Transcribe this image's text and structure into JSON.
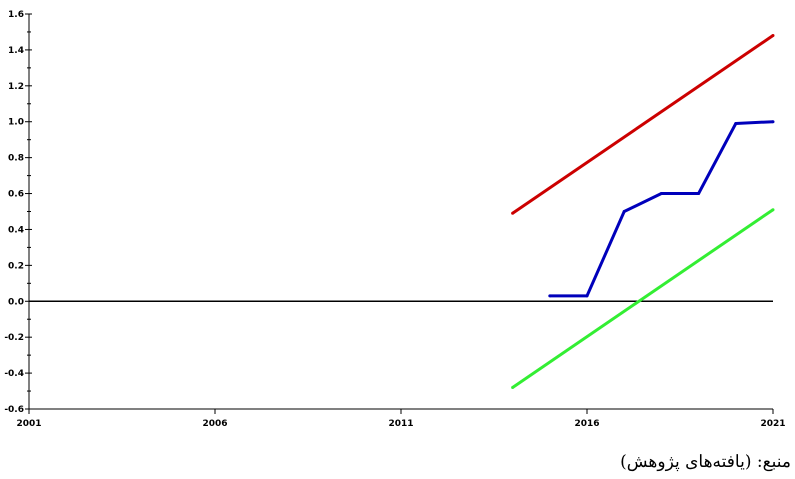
{
  "chart_data": {
    "type": "line",
    "title": "",
    "xlabel": "",
    "ylabel": "",
    "xlim": [
      2001,
      2021
    ],
    "ylim": [
      -0.6,
      1.6
    ],
    "x_ticks": [
      2001,
      2006,
      2011,
      2016,
      2021
    ],
    "x_tick_labels": [
      "2001",
      "2006",
      "2011",
      "2016",
      "2021"
    ],
    "y_ticks": [
      -0.6,
      -0.4,
      -0.2,
      0.0,
      0.2,
      0.4,
      0.6,
      0.8,
      1.0,
      1.2,
      1.4,
      1.6
    ],
    "y_tick_labels": [
      "-0.6",
      "-0.4",
      "-0.2",
      "0.0",
      "0.2",
      "0.4",
      "0.6",
      "0.8",
      "1.0",
      "1.2",
      "1.4",
      "1.6"
    ],
    "grid": false,
    "zero_line": true,
    "series": [
      {
        "color": "#cc0000",
        "points": [
          [
            2014,
            0.49
          ],
          [
            2021,
            1.48
          ]
        ]
      },
      {
        "color": "#0000bb",
        "points": [
          [
            2015,
            0.03
          ],
          [
            2016,
            0.03
          ],
          [
            2017,
            0.5
          ],
          [
            2018,
            0.6
          ],
          [
            2019,
            0.6
          ],
          [
            2020,
            0.99
          ],
          [
            2021,
            1.0
          ]
        ]
      },
      {
        "color": "#33ee33",
        "points": [
          [
            2014,
            -0.48
          ],
          [
            2021,
            0.51
          ]
        ]
      }
    ]
  },
  "source_note": "منبع: (یافته‌های پژوهش)"
}
